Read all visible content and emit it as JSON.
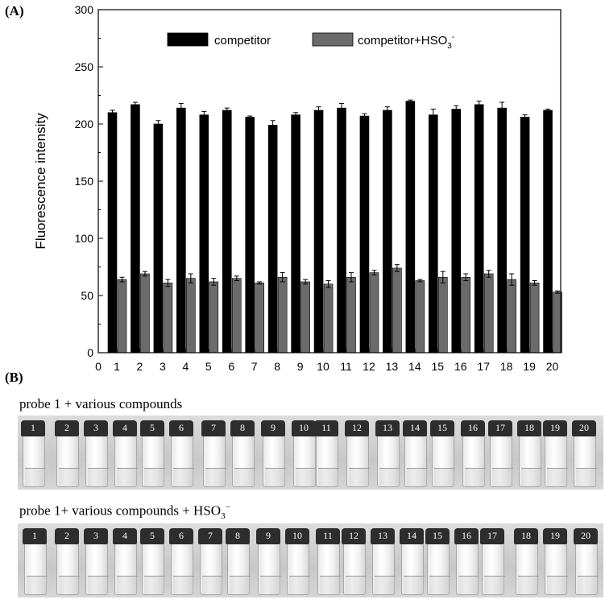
{
  "panel_a_label": "(A)",
  "panel_b_label": "(B)",
  "chart_data": {
    "type": "bar",
    "title": "",
    "xlabel": "",
    "ylabel": "Fluorescence intensity",
    "ylim": [
      0,
      300
    ],
    "yticks": [
      0,
      50,
      100,
      150,
      200,
      250,
      300
    ],
    "xlim": [
      0,
      20
    ],
    "xticks": [
      "0",
      "1",
      "2",
      "3",
      "4",
      "5",
      "6",
      "7",
      "8",
      "9",
      "10",
      "11",
      "12",
      "13",
      "14",
      "15",
      "16",
      "17",
      "18",
      "19",
      "20"
    ],
    "categories": [
      "1",
      "2",
      "3",
      "4",
      "5",
      "6",
      "7",
      "8",
      "9",
      "10",
      "11",
      "12",
      "13",
      "14",
      "15",
      "16",
      "17",
      "18",
      "19",
      "20"
    ],
    "legend_position": "top",
    "series": [
      {
        "name": "competitor",
        "color": "#000000",
        "values": [
          210,
          217,
          200,
          214,
          208,
          212,
          206,
          199,
          208,
          212,
          214,
          207,
          212,
          220,
          208,
          213,
          217,
          214,
          206,
          212
        ],
        "errors": [
          2,
          2,
          3,
          4,
          3,
          2,
          1,
          4,
          2,
          3,
          4,
          2,
          3,
          1,
          5,
          3,
          3,
          5,
          2,
          1
        ]
      },
      {
        "name": "competitor+HSO3⁻",
        "color": "#6b6b6b",
        "values": [
          64,
          69,
          61,
          65,
          62,
          65,
          61,
          66,
          62,
          60,
          66,
          70,
          74,
          63,
          66,
          66,
          69,
          64,
          61,
          53
        ],
        "errors": [
          2,
          2,
          3,
          4,
          3,
          2,
          1,
          4,
          2,
          3,
          4,
          2,
          3,
          1,
          5,
          3,
          3,
          5,
          2,
          1
        ]
      }
    ]
  },
  "legend": {
    "competitor": "competitor",
    "competitor_hso3_prefix": "competitor+HSO",
    "competitor_hso3_sub": "3",
    "competitor_hso3_sup": "-"
  },
  "photo_top": {
    "caption": "probe 1 + various compounds",
    "vial_labels": [
      "1",
      "2",
      "3",
      "4",
      "5",
      "6",
      "7",
      "8",
      "9",
      "10",
      "11",
      "12",
      "13",
      "14",
      "15",
      "16",
      "17",
      "18",
      "19",
      "20"
    ]
  },
  "photo_bottom": {
    "caption_prefix": "probe 1+ various compounds + HSO",
    "caption_sub": "3",
    "caption_sup": "−",
    "vial_labels": [
      "1",
      "2",
      "3",
      "4",
      "5",
      "6",
      "7",
      "8",
      "9",
      "10",
      "11",
      "12",
      "13",
      "14",
      "15",
      "16",
      "17",
      "18",
      "19",
      "20"
    ]
  }
}
